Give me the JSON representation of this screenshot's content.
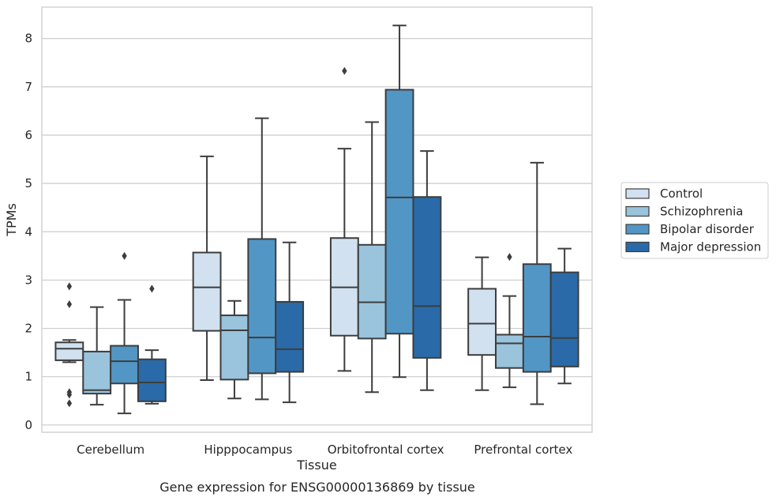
{
  "chart_data": {
    "type": "box",
    "title": "",
    "caption": "Gene expression for ENSG00000136869 by tissue",
    "xlabel": "Tissue",
    "ylabel": "TPMs",
    "ylim": [
      -0.15,
      8.65
    ],
    "yticks": [
      0,
      1,
      2,
      3,
      4,
      5,
      6,
      7,
      8
    ],
    "grid": "horizontal",
    "legend_position": "right",
    "categories": [
      "Cerebellum",
      "Hipppocampus",
      "Orbitofrontal cortex",
      "Prefrontal cortex"
    ],
    "series": [
      {
        "name": "Control",
        "color": "#d1e1f0",
        "boxes": [
          {
            "whisker_low": 1.3,
            "q1": 1.34,
            "median": 1.58,
            "q3": 1.71,
            "whisker_high": 1.76,
            "outliers": [
              2.87,
              2.5,
              0.68,
              0.63,
              0.45
            ]
          },
          {
            "whisker_low": 0.93,
            "q1": 1.95,
            "median": 2.85,
            "q3": 3.57,
            "whisker_high": 5.56,
            "outliers": []
          },
          {
            "whisker_low": 1.12,
            "q1": 1.85,
            "median": 2.85,
            "q3": 3.87,
            "whisker_high": 5.72,
            "outliers": [
              7.33
            ]
          },
          {
            "whisker_low": 0.72,
            "q1": 1.45,
            "median": 2.1,
            "q3": 2.82,
            "whisker_high": 3.47,
            "outliers": []
          }
        ]
      },
      {
        "name": "Schizophrenia",
        "color": "#9ac3dc",
        "boxes": [
          {
            "whisker_low": 0.42,
            "q1": 0.65,
            "median": 0.72,
            "q3": 1.52,
            "whisker_high": 2.44,
            "outliers": []
          },
          {
            "whisker_low": 0.55,
            "q1": 0.94,
            "median": 1.96,
            "q3": 2.27,
            "whisker_high": 2.57,
            "outliers": []
          },
          {
            "whisker_low": 0.68,
            "q1": 1.79,
            "median": 2.54,
            "q3": 3.73,
            "whisker_high": 6.27,
            "outliers": []
          },
          {
            "whisker_low": 0.78,
            "q1": 1.18,
            "median": 1.69,
            "q3": 1.87,
            "whisker_high": 2.67,
            "outliers": [
              3.48
            ]
          }
        ]
      },
      {
        "name": "Bipolar disorder",
        "color": "#5296c6",
        "boxes": [
          {
            "whisker_low": 0.24,
            "q1": 0.86,
            "median": 1.32,
            "q3": 1.64,
            "whisker_high": 2.59,
            "outliers": [
              3.5
            ]
          },
          {
            "whisker_low": 0.53,
            "q1": 1.07,
            "median": 1.81,
            "q3": 3.85,
            "whisker_high": 6.35,
            "outliers": []
          },
          {
            "whisker_low": 0.99,
            "q1": 1.89,
            "median": 4.71,
            "q3": 6.94,
            "whisker_high": 8.27,
            "outliers": []
          },
          {
            "whisker_low": 0.43,
            "q1": 1.1,
            "median": 1.83,
            "q3": 3.33,
            "whisker_high": 5.43,
            "outliers": []
          }
        ]
      },
      {
        "name": "Major depression",
        "color": "#2a6aa8",
        "boxes": [
          {
            "whisker_low": 0.44,
            "q1": 0.49,
            "median": 0.88,
            "q3": 1.36,
            "whisker_high": 1.55,
            "outliers": [
              2.82
            ]
          },
          {
            "whisker_low": 0.47,
            "q1": 1.1,
            "median": 1.57,
            "q3": 2.55,
            "whisker_high": 3.78,
            "outliers": []
          },
          {
            "whisker_low": 0.72,
            "q1": 1.39,
            "median": 2.46,
            "q3": 4.72,
            "whisker_high": 5.67,
            "outliers": []
          },
          {
            "whisker_low": 0.86,
            "q1": 1.21,
            "median": 1.8,
            "q3": 3.16,
            "whisker_high": 3.65,
            "outliers": []
          }
        ]
      }
    ]
  }
}
